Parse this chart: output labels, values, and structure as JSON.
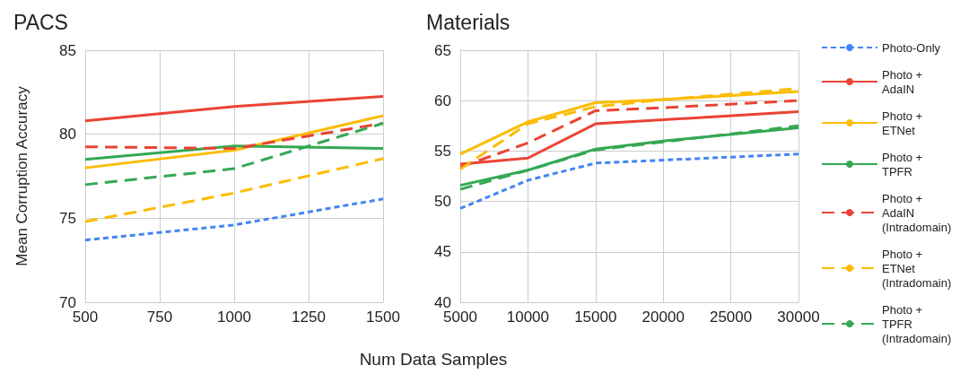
{
  "chart_data": [
    {
      "type": "line",
      "title": "PACS",
      "ylabel": "Mean Corruption Accuracy",
      "xlabel": "Num Data Samples",
      "x": [
        500,
        1000,
        1500
      ],
      "xlim": [
        500,
        1500
      ],
      "xticks": [
        500,
        750,
        1000,
        1250,
        1500
      ],
      "ylim": [
        70,
        85
      ],
      "yticks": [
        70,
        75,
        80,
        85
      ],
      "grid": true,
      "marker": "none",
      "legend": false,
      "series": [
        {
          "color": "#4285f4",
          "line_style": "dotted",
          "values": [
            73.7,
            74.6,
            76.15
          ]
        },
        {
          "color": "#ea4335",
          "line_style": "solid",
          "values": [
            80.8,
            81.65,
            82.25
          ]
        },
        {
          "color": "#fbbc04",
          "line_style": "solid",
          "values": [
            78.0,
            79.05,
            81.1
          ]
        },
        {
          "color": "#34a853",
          "line_style": "solid",
          "values": [
            78.5,
            79.3,
            79.15
          ]
        },
        {
          "color": "#ea4335",
          "line_style": "dashed",
          "values": [
            79.25,
            79.15,
            80.65
          ]
        },
        {
          "color": "#fbbc04",
          "line_style": "dashed",
          "values": [
            74.8,
            76.5,
            78.55
          ]
        },
        {
          "color": "#34a853",
          "line_style": "dashed",
          "values": [
            77.0,
            77.95,
            80.65
          ]
        }
      ]
    },
    {
      "type": "line",
      "title": "Materials",
      "x": [
        5000,
        10000,
        15000,
        20000,
        30000
      ],
      "xlim": [
        5000,
        30000
      ],
      "xticks": [
        5000,
        10000,
        15000,
        20000,
        25000,
        30000
      ],
      "ylim": [
        40,
        65
      ],
      "yticks": [
        40,
        45,
        50,
        55,
        60,
        65
      ],
      "grid": true,
      "marker": "none",
      "legend": "right",
      "series": [
        {
          "name": "Photo-Only",
          "color": "#4285f4",
          "line_style": "dotted",
          "values": [
            49.3,
            52.1,
            53.8,
            54.1,
            54.7
          ]
        },
        {
          "name": "Photo + AdaIN",
          "color": "#ea4335",
          "line_style": "solid",
          "values": [
            53.7,
            54.3,
            57.7,
            58.1,
            58.9
          ]
        },
        {
          "name": "Photo + ETNet",
          "color": "#fbbc04",
          "line_style": "solid",
          "values": [
            54.7,
            57.9,
            59.8,
            60.1,
            60.9
          ]
        },
        {
          "name": "Photo + TPFR",
          "color": "#34a853",
          "line_style": "solid",
          "values": [
            51.6,
            53.1,
            55.2,
            56.0,
            57.3
          ]
        },
        {
          "name": "Photo + AdaIN (Intradomain)",
          "color": "#ea4335",
          "line_style": "dashed",
          "values": [
            53.4,
            55.8,
            59.0,
            59.3,
            60.0
          ]
        },
        {
          "name": "Photo + ETNet (Intradomain)",
          "color": "#fbbc04",
          "line_style": "dashed",
          "values": [
            53.2,
            57.7,
            59.4,
            60.1,
            61.2
          ]
        },
        {
          "name": "Photo + TPFR (Intradomain)",
          "color": "#34a853",
          "line_style": "dashed",
          "values": [
            51.2,
            53.1,
            55.1,
            55.9,
            57.5
          ]
        }
      ]
    }
  ]
}
